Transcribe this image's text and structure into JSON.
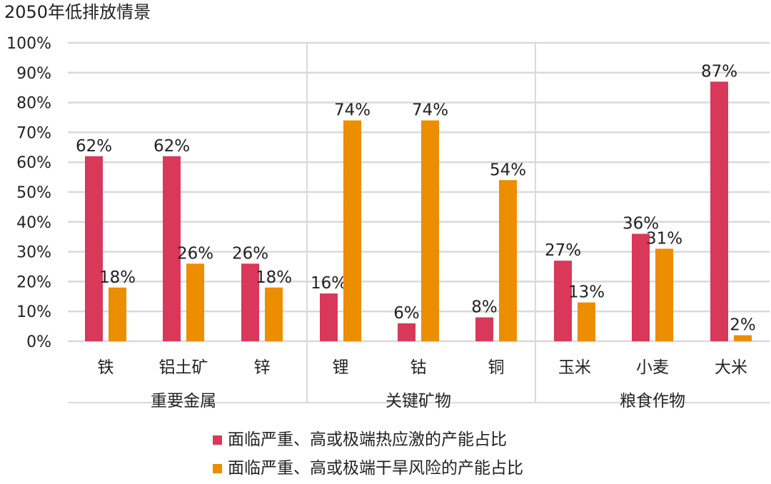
{
  "chart_data": {
    "type": "bar",
    "title": "2050年低排放情景",
    "y_ticks": [
      "100%",
      "90%",
      "80%",
      "70%",
      "60%",
      "50%",
      "40%",
      "30%",
      "20%",
      "10%",
      "0%"
    ],
    "ylim": [
      0,
      100
    ],
    "value_format": "percent",
    "grid": true,
    "legend_position": "bottom",
    "groups": [
      {
        "label": "重要金属",
        "categories": [
          "铁",
          "铝土矿",
          "锌"
        ]
      },
      {
        "label": "关键矿物",
        "categories": [
          "锂",
          "钴",
          "铜"
        ]
      },
      {
        "label": "粮食作物",
        "categories": [
          "玉米",
          "小麦",
          "大米"
        ]
      }
    ],
    "categories": [
      "铁",
      "铝土矿",
      "锌",
      "锂",
      "钴",
      "铜",
      "玉米",
      "小麦",
      "大米"
    ],
    "series": [
      {
        "name": "面临严重、高或极端热应激的产能占比",
        "color": "#d9385a",
        "values": [
          62,
          62,
          26,
          16,
          6,
          8,
          27,
          36,
          87
        ]
      },
      {
        "name": "面临严重、高或极端干旱风险的产能占比",
        "color": "#ed8d00",
        "values": [
          18,
          26,
          18,
          74,
          74,
          54,
          13,
          31,
          2
        ]
      }
    ]
  }
}
